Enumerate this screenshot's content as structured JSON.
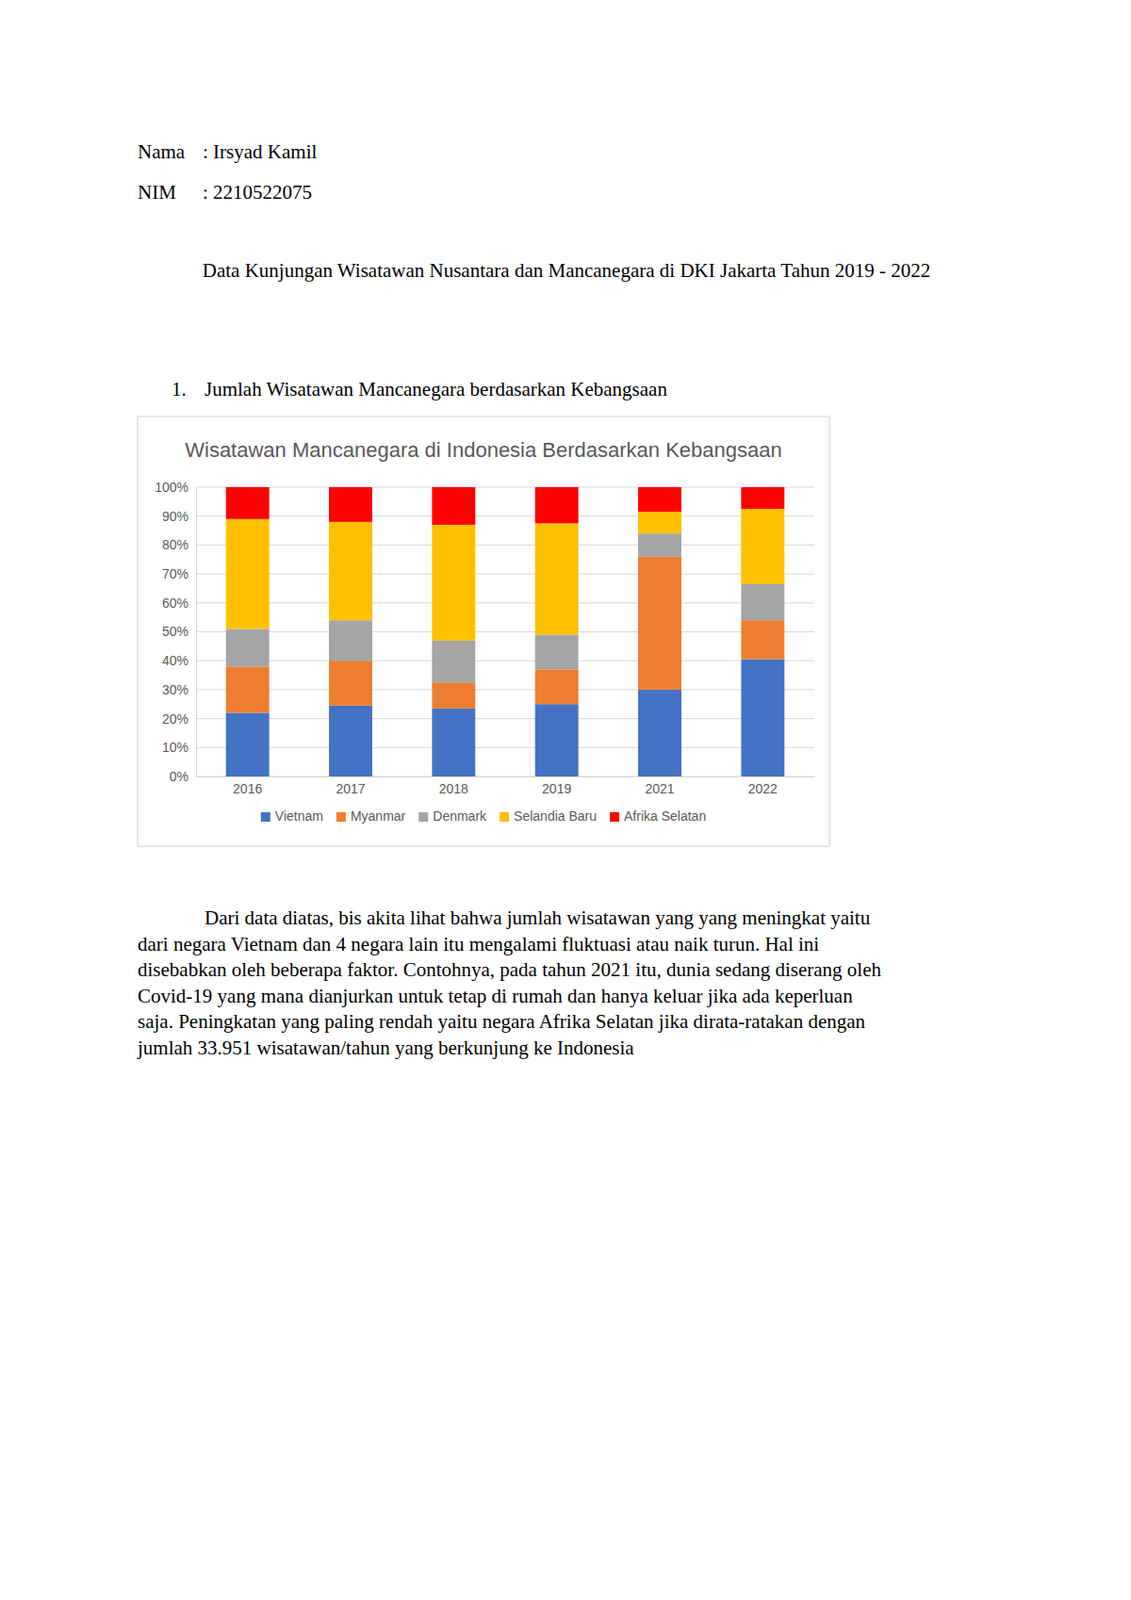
{
  "header": [
    {
      "label": "Nama",
      "value": ": Irsyad Kamil"
    },
    {
      "label": "NIM",
      "value": ": 2210522075"
    }
  ],
  "title": "Data Kunjungan Wisatawan Nusantara dan Mancanegara di DKI Jakarta Tahun 2019 - 2022",
  "section": {
    "number": "1.",
    "text": "Jumlah Wisatawan Mancanegara berdasarkan Kebangsaan"
  },
  "chart_data": {
    "type": "bar",
    "title": "Wisatawan Mancanegara di Indonesia Berdasarkan Kebangsaan",
    "categories": [
      "2016",
      "2017",
      "2018",
      "2019",
      "2021",
      "2022"
    ],
    "series": [
      {
        "name": "Vietnam",
        "color": "#4472c4",
        "values": [
          22,
          24.5,
          23.5,
          25,
          30,
          40.5
        ]
      },
      {
        "name": "Myanmar",
        "color": "#ed7d31",
        "values": [
          16,
          15.5,
          9,
          12,
          46,
          13.5
        ]
      },
      {
        "name": "Denmark",
        "color": "#a5a5a5",
        "values": [
          13,
          14,
          14.5,
          12,
          8,
          12.5
        ]
      },
      {
        "name": "Selandia Baru",
        "color": "#ffc000",
        "values": [
          38,
          34,
          40,
          38.5,
          7.5,
          26
        ]
      },
      {
        "name": "Afrika Selatan",
        "color": "#ff0000",
        "values": [
          11,
          12,
          13,
          12.5,
          8.5,
          7.5
        ]
      }
    ],
    "stacked": true,
    "grid": true,
    "legend": "bottom",
    "ylim": [
      0,
      100
    ],
    "yticks": [
      {
        "value": 0,
        "label": "0%"
      },
      {
        "value": 10,
        "label": "10%"
      },
      {
        "value": 20,
        "label": "20%"
      },
      {
        "value": 30,
        "label": "30%"
      },
      {
        "value": 40,
        "label": "40%"
      },
      {
        "value": 50,
        "label": "50%"
      },
      {
        "value": 60,
        "label": "60%"
      },
      {
        "value": 70,
        "label": "70%"
      },
      {
        "value": 80,
        "label": "80%"
      },
      {
        "value": 90,
        "label": "90%"
      },
      {
        "value": 100,
        "label": "100%"
      }
    ]
  },
  "paragraph": [
    "Dari data diatas, bis akita lihat bahwa jumlah wisatawan yang yang meningkat yaitu",
    "dari negara Vietnam dan 4 negara lain itu mengalami fluktuasi atau naik turun. Hal ini",
    "disebabkan oleh beberapa faktor. Contohnya, pada tahun 2021 itu, dunia sedang diserang oleh",
    "Covid-19 yang mana dianjurkan untuk tetap di rumah dan hanya keluar jika ada keperluan",
    "saja. Peningkatan yang paling rendah yaitu negara Afrika Selatan jika dirata-ratakan dengan",
    "jumlah 33.951 wisatawan/tahun yang berkunjung ke Indonesia"
  ]
}
